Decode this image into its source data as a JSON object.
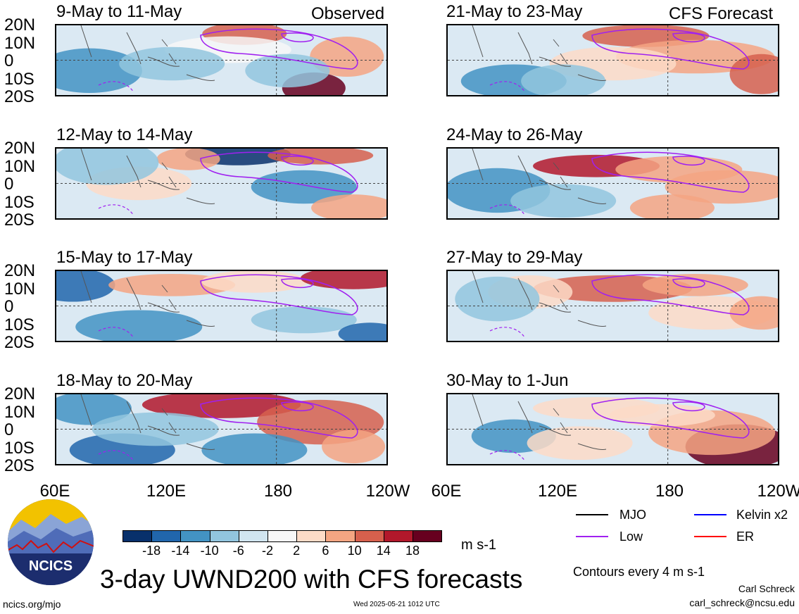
{
  "chart_data": {
    "type": "heatmap",
    "title": "3-day UWND200 with CFS forecasts",
    "units": "m s-1",
    "contour_note": "Contours every 4 m s-1",
    "lat_ticks": [
      "20N",
      "10N",
      "0",
      "10S",
      "20S"
    ],
    "lon_ticks": [
      "60E",
      "120E",
      "180",
      "120W"
    ],
    "colorbar": {
      "labels": [
        "-18",
        "-14",
        "-10",
        "-6",
        "-2",
        "2",
        "6",
        "10",
        "14",
        "18"
      ],
      "colors": [
        "#08306b",
        "#2166ac",
        "#4393c3",
        "#92c5de",
        "#d1e5f0",
        "#f7f7f7",
        "#fddbc7",
        "#f4a582",
        "#d6604d",
        "#b2182b",
        "#67001f"
      ]
    },
    "columns": [
      {
        "label": "Observed",
        "panels": [
          "9-May to 11-May",
          "12-May to 14-May",
          "15-May to 17-May",
          "18-May to 20-May"
        ]
      },
      {
        "label": "CFS Forecast",
        "panels": [
          "21-May to 23-May",
          "24-May to 26-May",
          "27-May to 29-May",
          "30-May to 1-Jun"
        ]
      }
    ],
    "legend": [
      {
        "name": "MJO",
        "color": "#000000"
      },
      {
        "name": "Kelvin x2",
        "color": "#0000ff"
      },
      {
        "name": "Low",
        "color": "#a020f0"
      },
      {
        "name": "ER",
        "color": "#ff0000"
      }
    ]
  },
  "footer": {
    "logo_text": "NCICS",
    "url": "ncics.org/mjo",
    "timestamp": "Wed 2025-05-21 1012 UTC",
    "author": "Carl Schreck",
    "email": "carl_schreck@ncsu.edu"
  },
  "colors": {
    "mjo": "#000000",
    "kelvin": "#0000ff",
    "low": "#a020f0",
    "er": "#ff0000"
  }
}
